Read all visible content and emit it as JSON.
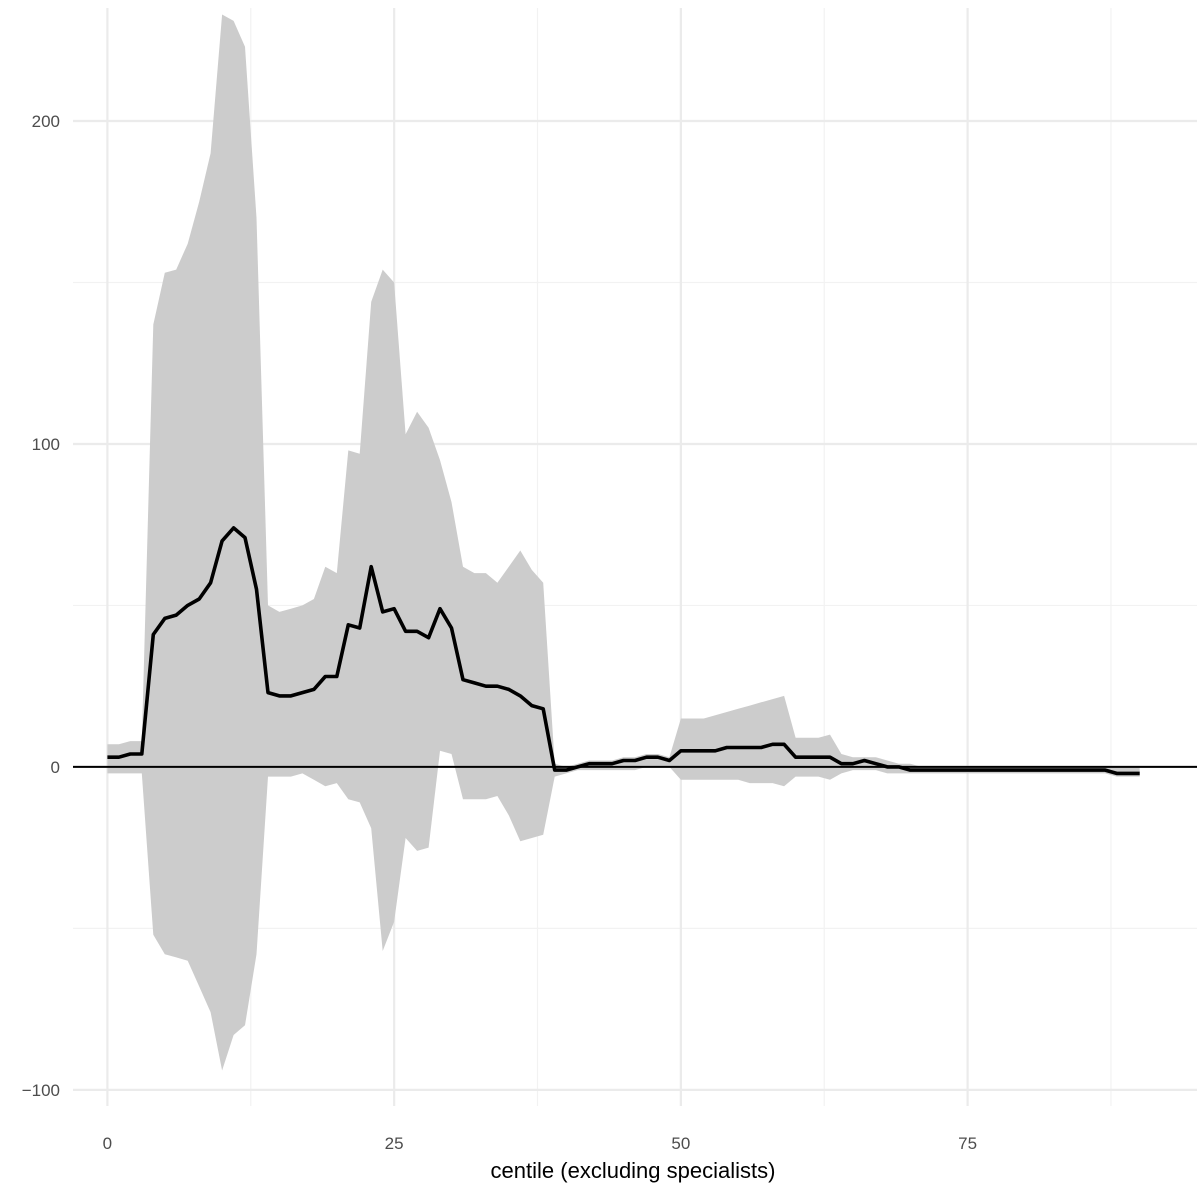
{
  "chart_data": {
    "type": "area",
    "title": "",
    "xlabel": "centile (excluding specialists)",
    "ylabel": "",
    "xlim": [
      -3,
      95
    ],
    "ylim": [
      -105,
      235
    ],
    "x_ticks": [
      0,
      25,
      50,
      75
    ],
    "y_ticks": [
      -100,
      0,
      100,
      200
    ],
    "grid": true,
    "legend": "none",
    "colors": {
      "ribbon": "#cccccc",
      "line": "#000000",
      "zero_line": "#000000",
      "grid": "#ebebeb"
    },
    "series": [
      {
        "x": [
          0,
          1,
          2,
          3,
          4,
          5,
          6,
          7,
          8,
          9,
          10,
          11,
          12,
          13,
          14,
          15,
          16,
          17,
          18,
          19,
          20,
          21,
          22,
          23,
          24,
          25,
          26,
          27,
          28,
          29,
          30,
          31,
          32,
          33,
          34,
          35,
          36,
          37,
          38,
          39,
          40,
          41,
          42,
          43,
          44,
          45,
          46,
          47,
          48,
          49,
          50,
          51,
          52,
          53,
          54,
          55,
          56,
          57,
          58,
          59,
          60,
          61,
          62,
          63,
          64,
          65,
          66,
          67,
          68,
          69,
          70,
          71,
          72,
          73,
          74,
          75,
          76,
          77,
          78,
          79,
          80,
          81,
          82,
          83,
          84,
          85,
          86,
          87,
          88,
          89,
          90
        ],
        "values": [
          3,
          3,
          4,
          4,
          41,
          46,
          47,
          50,
          52,
          57,
          70,
          74,
          71,
          55,
          23,
          22,
          22,
          23,
          24,
          28,
          28,
          44,
          43,
          62,
          48,
          49,
          42,
          42,
          40,
          49,
          43,
          27,
          26,
          25,
          25,
          24,
          22,
          19,
          18,
          -1,
          -1,
          0,
          1,
          1,
          1,
          2,
          2,
          3,
          3,
          2,
          5,
          5,
          5,
          5,
          6,
          6,
          6,
          6,
          7,
          7,
          3,
          3,
          3,
          3,
          1,
          1,
          2,
          1,
          0,
          0,
          -1,
          -1,
          -1,
          -1,
          -1,
          -1,
          -1,
          -1,
          -1,
          -1,
          -1,
          -1,
          -1,
          -1,
          -1,
          -1,
          -1,
          -1,
          -2,
          -2,
          -2
        ],
        "lower": [
          -2,
          -2,
          -2,
          -2,
          -52,
          -58,
          -59,
          -60,
          -68,
          -76,
          -94,
          -83,
          -80,
          -58,
          -3,
          -3,
          -3,
          -2,
          -4,
          -6,
          -5,
          -10,
          -11,
          -19,
          -57,
          -48,
          -22,
          -26,
          -25,
          5,
          4,
          -10,
          -10,
          -10,
          -9,
          -15,
          -23,
          -22,
          -21,
          -3,
          -2,
          -1,
          -1,
          -1,
          -1,
          -1,
          -1,
          0,
          0,
          0,
          -4,
          -4,
          -4,
          -4,
          -4,
          -4,
          -5,
          -5,
          -5,
          -6,
          -3,
          -3,
          -3,
          -4,
          -2,
          -1,
          -1,
          -1,
          -2,
          -2,
          -2,
          -2,
          -2,
          -2,
          -2,
          -2,
          -2,
          -2,
          -2,
          -2,
          -2,
          -2,
          -2,
          -2,
          -2,
          -2,
          -2,
          -2,
          -3,
          -3,
          -3
        ],
        "upper": [
          7,
          7,
          8,
          8,
          137,
          153,
          154,
          162,
          175,
          190,
          233,
          231,
          223,
          170,
          50,
          48,
          49,
          50,
          52,
          62,
          60,
          98,
          97,
          144,
          154,
          150,
          103,
          110,
          105,
          95,
          82,
          62,
          60,
          60,
          57,
          62,
          67,
          61,
          57,
          1,
          0,
          1,
          2,
          2,
          2,
          3,
          3,
          4,
          4,
          3,
          15,
          15,
          15,
          16,
          17,
          18,
          19,
          20,
          21,
          22,
          9,
          9,
          9,
          10,
          4,
          3,
          3,
          3,
          2,
          1,
          1,
          0,
          0,
          0,
          0,
          0,
          0,
          0,
          0,
          0,
          0,
          0,
          0,
          0,
          0,
          0,
          0,
          0,
          0,
          0,
          0
        ]
      }
    ]
  }
}
